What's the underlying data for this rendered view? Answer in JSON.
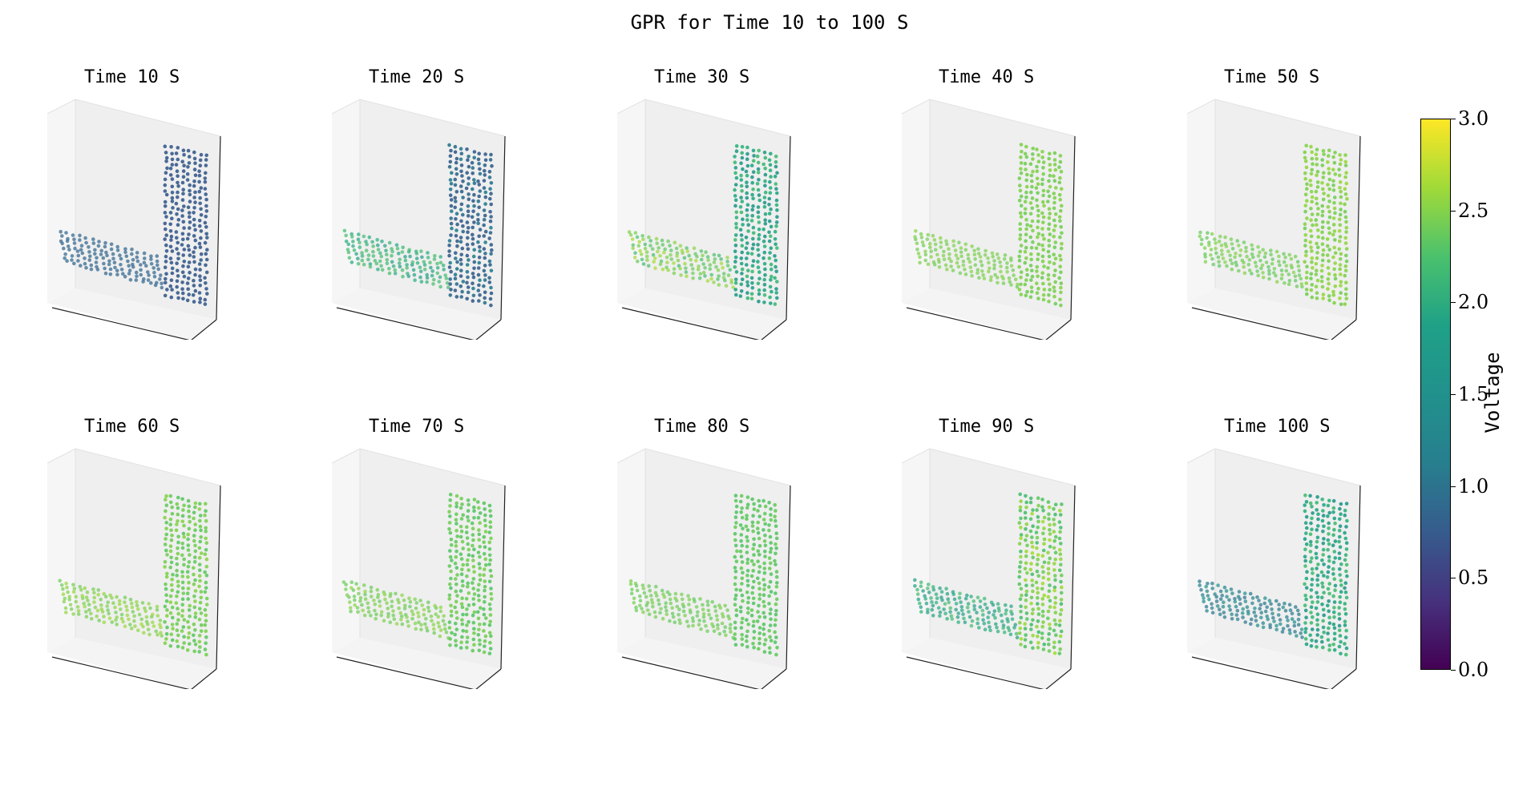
{
  "chart_data": {
    "type": "scatter",
    "projection": "3d",
    "title": "GPR for Time 10 to 100 S",
    "shape": "L-shaped point cloud (vertical column on right, horizontal base at bottom)",
    "colormap": "viridis",
    "colorbar": {
      "label": "Voltage",
      "range": [
        0.0,
        3.0
      ],
      "ticks": [
        "0.0",
        "0.5",
        "1.0",
        "1.5",
        "2.0",
        "2.5",
        "3.0"
      ]
    },
    "grid": false,
    "panels": [
      {
        "title": "Time 10 S",
        "time": 10,
        "voltage_range": [
          0.85,
          1.0
        ],
        "column_voltage": 0.85,
        "base_voltage": 1.0
      },
      {
        "title": "Time 20 S",
        "time": 20,
        "voltage_range": [
          0.9,
          2.1
        ],
        "column_voltage": 0.95,
        "base_voltage": 2.05
      },
      {
        "title": "Time 30 S",
        "time": 30,
        "voltage_range": [
          1.6,
          2.6
        ],
        "column_voltage": 1.8,
        "base_voltage": 2.35
      },
      {
        "title": "Time 40 S",
        "time": 40,
        "voltage_range": [
          2.3,
          2.5
        ],
        "column_voltage": 2.4,
        "base_voltage": 2.4
      },
      {
        "title": "Time 50 S",
        "time": 50,
        "voltage_range": [
          2.25,
          2.6
        ],
        "column_voltage": 2.45,
        "base_voltage": 2.35
      },
      {
        "title": "Time 60 S",
        "time": 60,
        "voltage_range": [
          2.2,
          2.6
        ],
        "column_voltage": 2.35,
        "base_voltage": 2.45
      },
      {
        "title": "Time 70 S",
        "time": 70,
        "voltage_range": [
          2.2,
          2.55
        ],
        "column_voltage": 2.3,
        "base_voltage": 2.4
      },
      {
        "title": "Time 80 S",
        "time": 80,
        "voltage_range": [
          2.2,
          2.45
        ],
        "column_voltage": 2.25,
        "base_voltage": 2.35
      },
      {
        "title": "Time 90 S",
        "time": 90,
        "voltage_range": [
          1.7,
          2.6
        ],
        "column_voltage": 2.35,
        "base_voltage": 1.85
      },
      {
        "title": "Time 100 S",
        "time": 100,
        "voltage_range": [
          1.2,
          2.1
        ],
        "column_voltage": 1.85,
        "base_voltage": 1.3
      }
    ]
  }
}
